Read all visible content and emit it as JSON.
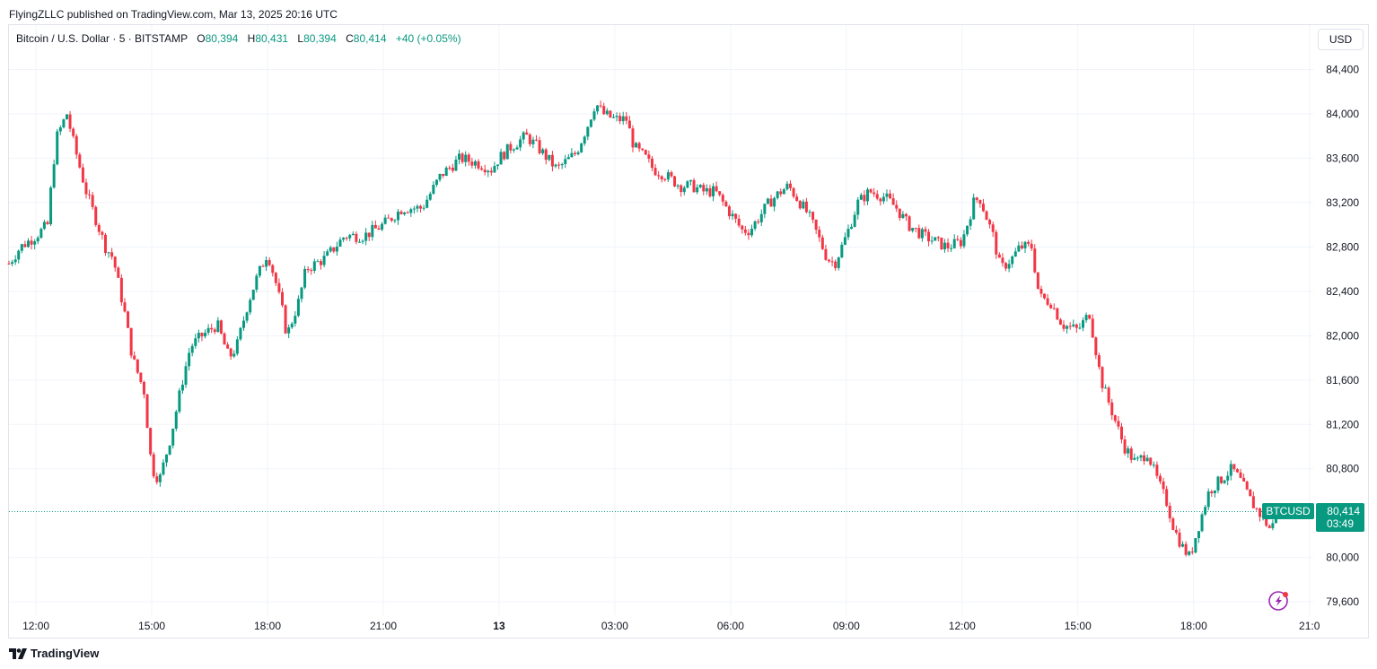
{
  "header": {
    "published": "FlyingZLLC published on TradingView.com, Mar 13, 2025 20:16 UTC"
  },
  "legend": {
    "symbol": "Bitcoin / U.S. Dollar · 5 · BITSTAMP",
    "o_label": "O",
    "o": "80,394",
    "h_label": "H",
    "h": "80,431",
    "l_label": "L",
    "l": "80,394",
    "c_label": "C",
    "c": "80,414",
    "change": "+40 (+0.05%)"
  },
  "currency_button": "USD",
  "price_tag": {
    "ticker": "BTCUSD",
    "price": "80,414",
    "countdown": "03:49"
  },
  "footer": {
    "brand": "TradingView"
  },
  "colors": {
    "up": "#089981",
    "down": "#f23645",
    "grid": "#f0f3fa",
    "last_price_line": "#089981"
  },
  "chart_data": {
    "type": "candlestick",
    "interval": "5m",
    "last_price": 80414,
    "y_range": [
      79480,
      84800
    ],
    "y_ticks": [
      84400,
      84000,
      83600,
      83200,
      82800,
      82400,
      82000,
      81600,
      81200,
      80800,
      80000,
      79600
    ],
    "y_tick_labels": [
      "84,400",
      "84,000",
      "83,600",
      "83,200",
      "82,800",
      "82,400",
      "82,000",
      "81,600",
      "81,200",
      "80,800",
      "80,000",
      "79,600"
    ],
    "x_ticks": [
      "12:00",
      "15:00",
      "18:00",
      "21:00",
      "13",
      "03:00",
      "06:00",
      "09:00",
      "12:00",
      "15:00",
      "18:00",
      "21:0"
    ],
    "x_tick_hours": [
      12,
      15,
      18,
      21,
      24,
      27,
      30,
      33,
      36,
      39,
      42,
      45
    ],
    "x_range_hours": [
      11.3,
      45.1
    ],
    "path_hours": [
      11.3,
      11.6,
      12.0,
      12.3,
      12.45,
      12.55,
      12.8,
      13.0,
      13.3,
      13.5,
      13.8,
      14.0,
      14.3,
      14.5,
      14.8,
      15.0,
      15.2,
      15.5,
      15.8,
      16.0,
      16.3,
      16.7,
      17.0,
      17.2,
      17.5,
      17.7,
      18.0,
      18.2,
      18.4,
      18.5,
      18.8,
      19.0,
      19.5,
      20.0,
      20.5,
      21.0,
      21.5,
      22.0,
      22.5,
      23.0,
      23.5,
      23.8,
      24.0,
      24.3,
      24.7,
      25.0,
      25.5,
      26.0,
      26.3,
      26.5,
      26.7,
      27.0,
      27.3,
      27.5,
      27.8,
      28.0,
      28.3,
      28.7,
      29.0,
      29.3,
      29.6,
      30.0,
      30.3,
      30.5,
      30.8,
      31.0,
      31.3,
      31.5,
      31.8,
      32.0,
      32.2,
      32.5,
      32.7,
      33.0,
      33.3,
      33.6,
      34.0,
      34.3,
      34.6,
      35.0,
      35.3,
      35.6,
      36.0,
      36.3,
      36.45,
      36.6,
      36.8,
      37.0,
      37.3,
      37.5,
      37.8,
      38.0,
      38.3,
      38.6,
      39.0,
      39.3,
      39.6,
      39.9,
      40.2,
      40.5,
      40.8,
      41.0,
      41.3,
      41.5,
      41.7,
      41.9,
      42.1,
      42.4,
      42.7,
      43.0,
      43.2,
      43.5,
      43.8,
      44.0,
      44.2
    ],
    "path_prices": [
      82650,
      82800,
      82900,
      83000,
      83550,
      83800,
      84000,
      83700,
      83300,
      83100,
      82800,
      82700,
      82200,
      81800,
      81500,
      80800,
      80700,
      81100,
      81600,
      81900,
      82000,
      82100,
      81800,
      81900,
      82300,
      82500,
      82750,
      82500,
      82200,
      82000,
      82300,
      82600,
      82700,
      82900,
      82900,
      83000,
      83150,
      83150,
      83450,
      83600,
      83550,
      83500,
      83600,
      83700,
      83800,
      83700,
      83500,
      83650,
      83900,
      84100,
      84000,
      83950,
      83950,
      83700,
      83600,
      83500,
      83450,
      83350,
      83350,
      83300,
      83300,
      83100,
      82950,
      82950,
      83100,
      83200,
      83300,
      83350,
      83200,
      83100,
      82950,
      82700,
      82650,
      82900,
      83200,
      83300,
      83250,
      83150,
      83000,
      82900,
      82850,
      82800,
      82850,
      83200,
      83250,
      83100,
      82900,
      82600,
      82700,
      82800,
      82800,
      82350,
      82300,
      82100,
      82050,
      82200,
      81600,
      81300,
      81000,
      80850,
      80950,
      80750,
      80500,
      80250,
      80100,
      80000,
      80250,
      80600,
      80700,
      80800,
      80700,
      80500,
      80350,
      80250,
      80414
    ]
  }
}
